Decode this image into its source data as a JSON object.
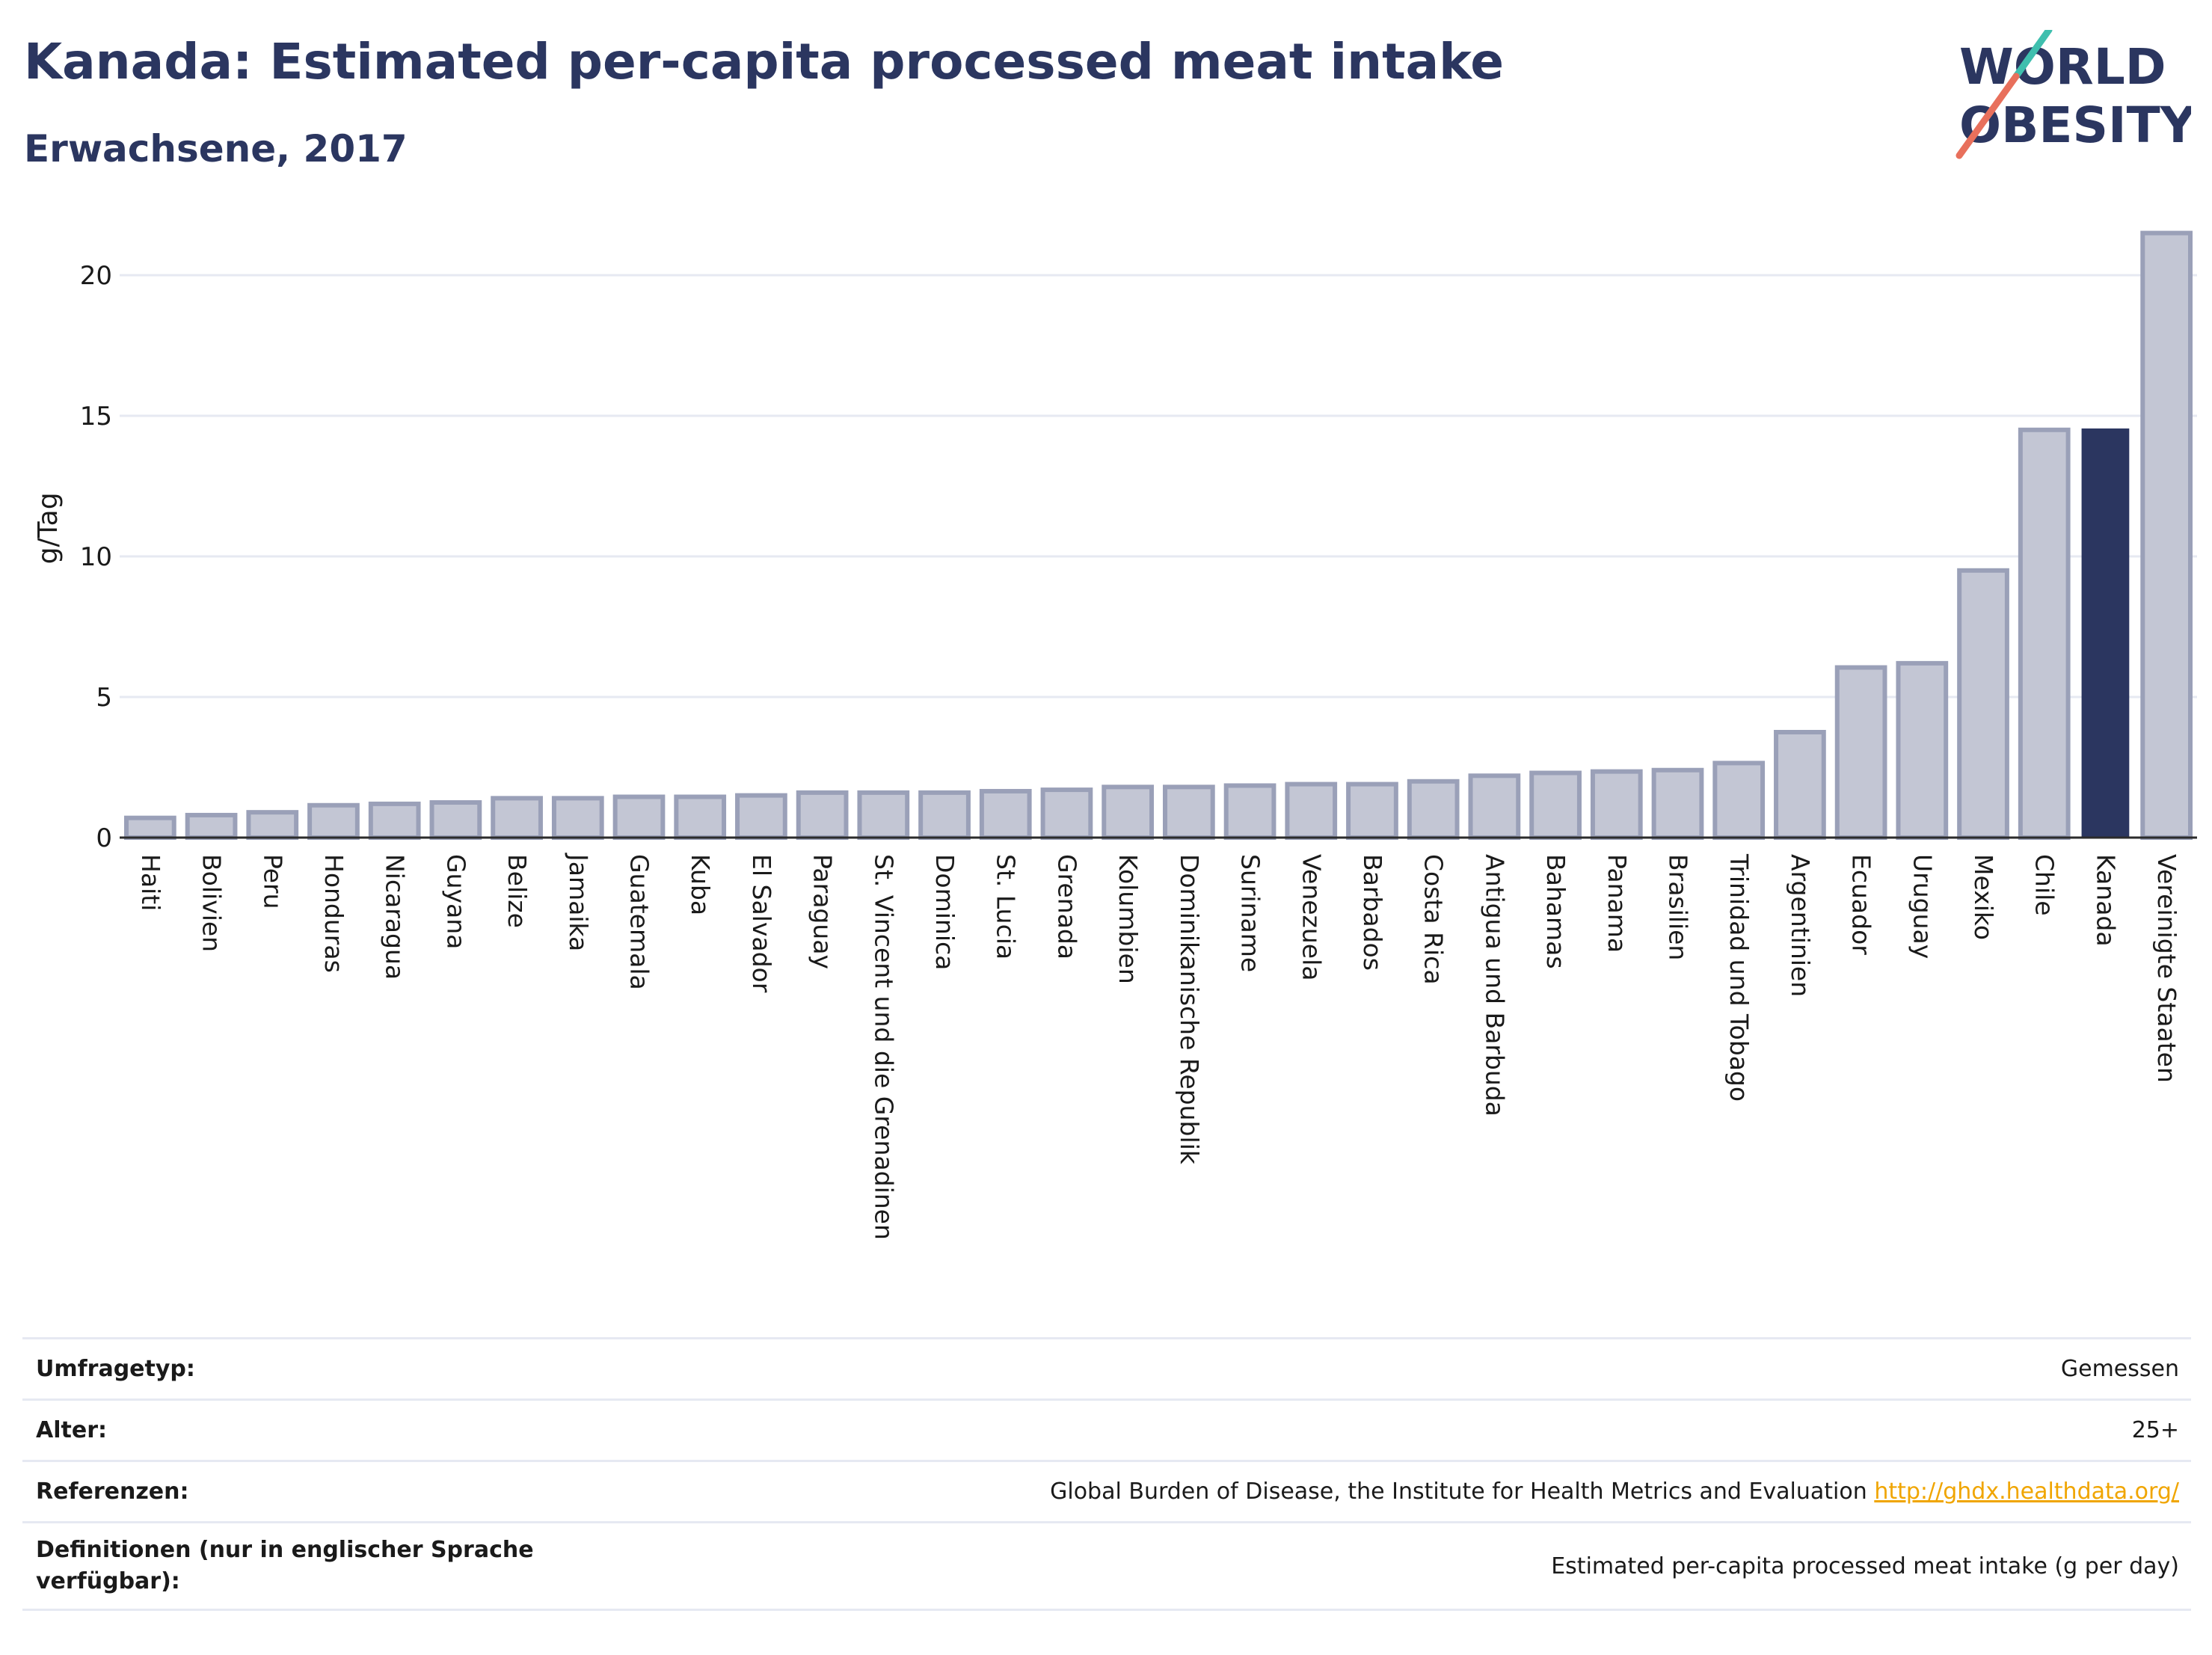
{
  "header": {
    "title": "Kanada: Estimated per-capita processed meat intake",
    "subtitle": "Erwachsene, 2017"
  },
  "logo": {
    "line1": "WORLD",
    "line2": "OBESITY",
    "accent_teal": "#3fbfae",
    "accent_coral": "#e8705c"
  },
  "colors": {
    "highlight": "#2b3660",
    "bar_fill": "#c3c6d4",
    "bar_stroke": "#9aa0b8",
    "grid": "#e6e9f2"
  },
  "chart_data": {
    "type": "bar",
    "ylabel": "g/Tag",
    "ylim": [
      0,
      22
    ],
    "yticks": [
      0,
      5,
      10,
      15,
      20
    ],
    "grid": true,
    "highlight": "Kanada",
    "categories": [
      "Haiti",
      "Bolivien",
      "Peru",
      "Honduras",
      "Nicaragua",
      "Guyana",
      "Belize",
      "Jamaika",
      "Guatemala",
      "Kuba",
      "El Salvador",
      "Paraguay",
      "St. Vincent und die Grenadinen",
      "Dominica",
      "St. Lucia",
      "Grenada",
      "Kolumbien",
      "Dominikanische Republik",
      "Suriname",
      "Venezuela",
      "Barbados",
      "Costa Rica",
      "Antigua und Barbuda",
      "Bahamas",
      "Panama",
      "Brasilien",
      "Trinidad und Tobago",
      "Argentinien",
      "Ecuador",
      "Uruguay",
      "Mexiko",
      "Chile",
      "Kanada",
      "Vereinigte Staaten"
    ],
    "values": [
      0.7,
      0.8,
      0.9,
      1.15,
      1.2,
      1.25,
      1.4,
      1.4,
      1.45,
      1.45,
      1.5,
      1.6,
      1.6,
      1.6,
      1.65,
      1.7,
      1.8,
      1.8,
      1.85,
      1.9,
      1.9,
      2.0,
      2.2,
      2.3,
      2.35,
      2.4,
      2.65,
      3.75,
      6.05,
      6.2,
      9.5,
      14.5,
      14.55,
      21.5
    ]
  },
  "info": [
    {
      "label": "Umfragetyp:",
      "value": "Gemessen"
    },
    {
      "label": "Alter:",
      "value": "25+"
    },
    {
      "label": "Referenzen:",
      "value": "Global Burden of Disease, the Institute for Health Metrics and Evaluation",
      "link": "http://ghdx.healthdata.org/"
    },
    {
      "label": "Definitionen (nur in englischer Sprache verfügbar):",
      "value": "Estimated per-capita processed meat intake (g per day)"
    }
  ]
}
